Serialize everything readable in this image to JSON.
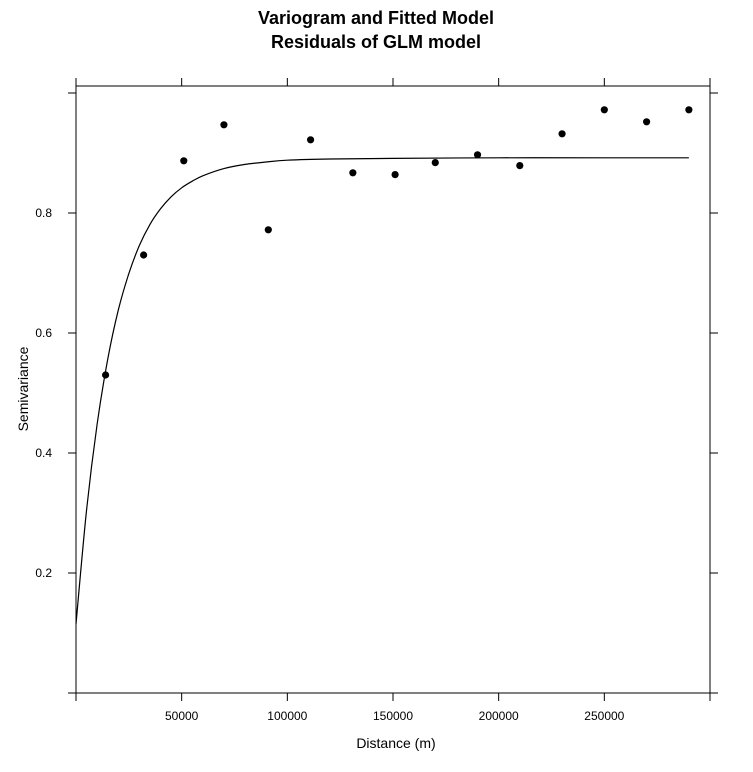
{
  "chart_data": {
    "type": "scatter",
    "title": "Variogram and Fitted Model",
    "subtitle": "Residuals of GLM model",
    "xlabel": "Distance (m)",
    "ylabel": "Semivariance",
    "xlim": [
      0,
      300000
    ],
    "ylim": [
      0,
      1.0
    ],
    "x_ticks": [
      50000,
      100000,
      150000,
      200000,
      250000
    ],
    "x_tick_labels": [
      "50000",
      "100000",
      "150000",
      "200000",
      "250000"
    ],
    "y_ticks": [
      0.2,
      0.4,
      0.6,
      0.8
    ],
    "y_tick_labels": [
      "0.2",
      "0.4",
      "0.6",
      "0.8"
    ],
    "grid": false,
    "colors": {
      "points": "#000000",
      "line": "#000000",
      "frame": "#000000",
      "background": "#ffffff"
    },
    "series": [
      {
        "kind": "points",
        "x": [
          14000,
          32000,
          51000,
          70000,
          91000,
          111000,
          131000,
          151000,
          170000,
          190000,
          210000,
          230000,
          250000,
          270000,
          290000
        ],
        "y": [
          0.53,
          0.73,
          0.887,
          0.947,
          0.772,
          0.922,
          0.867,
          0.864,
          0.884,
          0.897,
          0.879,
          0.932,
          0.972,
          0.952,
          0.972
        ]
      },
      {
        "kind": "fitted-line",
        "x": [
          0,
          5000,
          10000,
          15000,
          20000,
          25000,
          30000,
          35000,
          40000,
          45000,
          50000,
          55000,
          60000,
          70000,
          80000,
          90000,
          100000,
          120000,
          150000,
          200000,
          250000,
          290000
        ],
        "y": [
          0.115,
          0.305,
          0.448,
          0.556,
          0.638,
          0.699,
          0.746,
          0.781,
          0.807,
          0.827,
          0.842,
          0.853,
          0.862,
          0.874,
          0.881,
          0.885,
          0.888,
          0.89,
          0.891,
          0.892,
          0.892,
          0.892
        ]
      }
    ]
  }
}
